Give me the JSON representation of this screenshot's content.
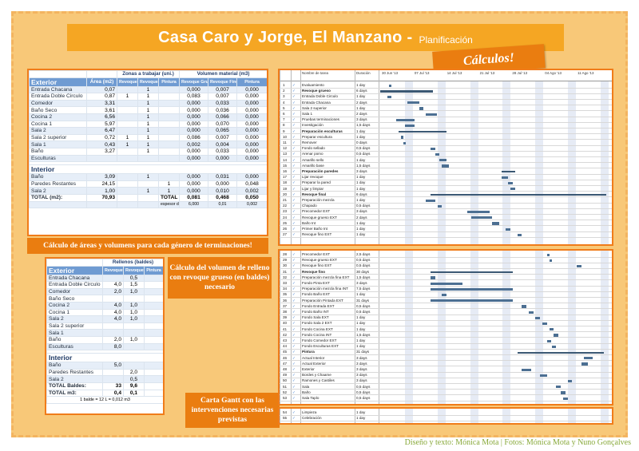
{
  "header": {
    "title": "Casa Caro y Jorge, El Manzano -",
    "subtitle": "Planificación",
    "tag": "Cálculos!"
  },
  "table1": {
    "group_headers": [
      "Zonas a trabajar (uni.)",
      "Volumen material (m3)"
    ],
    "col_headers": [
      "Área (m2)",
      "Revoque Grueso",
      "Revoque Fino",
      "Pintura",
      "Revoque Grueso",
      "Revoque Fino",
      "Pintura"
    ],
    "exterior_label": "Exterior",
    "exterior_rows": [
      [
        "Entrada Chacana",
        "0,07",
        "",
        "1",
        "",
        "0,000",
        "0,007",
        "0,000"
      ],
      [
        "Entrada Doble Circulo",
        "0,87",
        "1",
        "1",
        "",
        "0,083",
        "0,007",
        "0,000"
      ],
      [
        "Comedor",
        "3,31",
        "",
        "1",
        "",
        "0,000",
        "0,033",
        "0,000"
      ],
      [
        "Baño Seco",
        "3,61",
        "",
        "1",
        "",
        "0,000",
        "0,036",
        "0,000"
      ],
      [
        "Cocina 2",
        "6,56",
        "",
        "1",
        "",
        "0,000",
        "0,066",
        "0,000"
      ],
      [
        "Cocina 1",
        "5,97",
        "",
        "1",
        "",
        "0,000",
        "0,070",
        "0,000"
      ],
      [
        "Sala 2",
        "6,47",
        "",
        "1",
        "",
        "0,000",
        "0,065",
        "0,000"
      ],
      [
        "Sala 2 superior",
        "0,72",
        "1",
        "1",
        "",
        "0,086",
        "0,007",
        "0,000"
      ],
      [
        "Sala 1",
        "0,43",
        "1",
        "1",
        "",
        "0,002",
        "0,004",
        "0,000"
      ],
      [
        "Baño",
        "3,27",
        "",
        "1",
        "",
        "0,000",
        "0,033",
        "0,000"
      ],
      [
        "Esculturas",
        "",
        "",
        "",
        "",
        "0,000",
        "0,000",
        "0,000"
      ]
    ],
    "interior_label": "Interior",
    "interior_rows": [
      [
        "Baño",
        "3,09",
        "",
        "1",
        "",
        "0,000",
        "0,031",
        "0,000"
      ],
      [
        "Paredes Restantes",
        "24,15",
        "",
        "",
        "1",
        "0,000",
        "0,000",
        "0,048"
      ],
      [
        "Sala 2",
        "1,00",
        "",
        "1",
        "1",
        "0,000",
        "0,010",
        "0,002"
      ]
    ],
    "total_row": [
      "TOTAL (m2):",
      "70,93",
      "",
      "",
      "TOTAL (m3):",
      "0,081",
      "0,468",
      "0,050"
    ],
    "footer_row": [
      "",
      "",
      "",
      "",
      "espesor de la terminación (cm)",
      "6,000",
      "0,01",
      "0,002"
    ]
  },
  "table2": {
    "group_header": "Rellenos (baldes)",
    "col_headers": [
      "Revoque Grueso",
      "Revoque Fino",
      "Pintura"
    ],
    "exterior_label": "Exterior",
    "exterior_rows": [
      [
        "Entrada Chacana",
        "",
        "0,5",
        ""
      ],
      [
        "Entrada Doble Circulo",
        "4,0",
        "1,5",
        ""
      ],
      [
        "Comedor",
        "2,0",
        "1,0",
        ""
      ],
      [
        "Baño Seco",
        "",
        "",
        ""
      ],
      [
        "Cocina 2",
        "4,0",
        "1,0",
        ""
      ],
      [
        "Cocina 1",
        "4,0",
        "1,0",
        ""
      ],
      [
        "Sala 2",
        "4,0",
        "1,0",
        ""
      ],
      [
        "Sala 2 superior",
        "",
        "",
        ""
      ],
      [
        "Sala 1",
        "",
        "",
        ""
      ],
      [
        "Baño",
        "2,0",
        "1,0",
        ""
      ],
      [
        "Esculturas",
        "8,0",
        "",
        ""
      ]
    ],
    "interior_label": "Interior",
    "interior_rows": [
      [
        "Baño",
        "5,0",
        "",
        ""
      ],
      [
        "Paredes Restantes",
        "",
        "2,0",
        ""
      ],
      [
        "Sala 2",
        "",
        "0,5",
        ""
      ]
    ],
    "total_rows": [
      [
        "TOTAL Baldes:",
        "33",
        "9,6",
        ""
      ],
      [
        "TOTAL m3:",
        "0,4",
        "0,1",
        ""
      ]
    ],
    "note": "1 balde = 12 L = 0,012 m3"
  },
  "captions": {
    "cap1": "Cálculo de áreas y volumens para cada género de terminaciones!",
    "cap2": "Cálculo del volumen de relleno con revoque grueso (en baldes) necesario",
    "cap3": "Carta Gantt con las intervenciones necesarias previstas"
  },
  "gantt": {
    "header_task": "Nombre de tarea",
    "header_dur": "Duración",
    "dates": [
      "30 Jun '13",
      "07 Jul '13",
      "14 Jul '13",
      "21 Jul '13",
      "28 Jul '13",
      "04 Ago '13",
      "11 Ago '13"
    ],
    "top_tasks": [
      {
        "id": "1",
        "name": "Evaluamiento",
        "dur": "1 day",
        "bold": false,
        "start": 0.04,
        "len": 0.0
      },
      {
        "id": "2",
        "name": "Revoque grueso",
        "dur": "6 days",
        "bold": true,
        "start": 0.0,
        "len": 0.23
      },
      {
        "id": "3",
        "name": "Entrada Doble Circulo",
        "dur": "1 day",
        "bold": false,
        "start": 0.03,
        "len": 0.02
      },
      {
        "id": "4",
        "name": "Entrada Chacana",
        "dur": "2 days",
        "bold": false,
        "start": 0.12,
        "len": 0.05
      },
      {
        "id": "5",
        "name": "Sala 2 superior",
        "dur": "1 day",
        "bold": false,
        "start": 0.17,
        "len": 0.02
      },
      {
        "id": "6",
        "name": "Sala 1",
        "dur": "2 days",
        "bold": false,
        "start": 0.2,
        "len": 0.05
      },
      {
        "id": "7",
        "name": "Pruebas terminaciones",
        "dur": "3 days",
        "bold": false,
        "start": 0.07,
        "len": 0.08
      },
      {
        "id": "8",
        "name": "Investigación",
        "dur": "1,5 days",
        "bold": false,
        "start": 0.11,
        "len": 0.04
      },
      {
        "id": "9",
        "name": "Preparación esculturas",
        "dur": "1 day",
        "bold": true,
        "start": 0.08,
        "len": 0.21
      },
      {
        "id": "10",
        "name": "Preparar escultura",
        "dur": "1 day",
        "bold": false,
        "start": 0.09,
        "len": 0.0
      },
      {
        "id": "11",
        "name": "Remover",
        "dur": "0 days",
        "bold": false,
        "start": 0.1,
        "len": 0.0
      },
      {
        "id": "12",
        "name": "Fondo sellado",
        "dur": "0,5 days",
        "bold": false,
        "start": 0.22,
        "len": 0.02
      },
      {
        "id": "13",
        "name": "Arenar pomo",
        "dur": "0,5 days",
        "bold": false,
        "start": 0.24,
        "len": 0.02
      },
      {
        "id": "14",
        "name": "Amarillo sello",
        "dur": "1 day",
        "bold": false,
        "start": 0.26,
        "len": 0.03
      },
      {
        "id": "15",
        "name": "Amarillo base",
        "dur": "1,5 days",
        "bold": false,
        "start": 0.27,
        "len": 0.03
      },
      {
        "id": "16",
        "name": "Preparación paredes",
        "dur": "3 days",
        "bold": true,
        "start": 0.53,
        "len": 0.06
      },
      {
        "id": "17",
        "name": "Lijar revoque",
        "dur": "1 day",
        "bold": false,
        "start": 0.53,
        "len": 0.03
      },
      {
        "id": "18",
        "name": "Preparar la pared",
        "dur": "1 day",
        "bold": false,
        "start": 0.56,
        "len": 0.02
      },
      {
        "id": "19",
        "name": "Lijar y limpiar",
        "dur": "1 day",
        "bold": false,
        "start": 0.57,
        "len": 0.02
      },
      {
        "id": "20",
        "name": "Revoque final",
        "dur": "6 days",
        "bold": true,
        "start": 0.22,
        "len": 0.77
      },
      {
        "id": "21",
        "name": "Preparación mezcla",
        "dur": "1 day",
        "bold": false,
        "start": 0.2,
        "len": 0.04
      },
      {
        "id": "22",
        "name": "Chapado",
        "dur": "0,5 days",
        "bold": false,
        "start": 0.25,
        "len": 0.02
      },
      {
        "id": "23",
        "name": "Precomedor EXT",
        "dur": "3 days",
        "bold": false,
        "start": 0.38,
        "len": 0.1
      },
      {
        "id": "24",
        "name": "Revoque grueso EXT",
        "dur": "2 days",
        "bold": false,
        "start": 0.4,
        "len": 0.09
      },
      {
        "id": "25",
        "name": "Baño Int",
        "dur": "1 day",
        "bold": false,
        "start": 0.49,
        "len": 0.03
      },
      {
        "id": "26",
        "name": "Primer Baño Int",
        "dur": "1 day",
        "bold": false,
        "start": 0.55,
        "len": 0.02
      },
      {
        "id": "27",
        "name": "Revoque fino EXT",
        "dur": "1 day",
        "bold": false,
        "start": 0.6,
        "len": 0.02
      }
    ],
    "bottom_tasks": [
      {
        "id": "28",
        "name": "Precomedor EXT",
        "dur": "2,5 days",
        "bold": false,
        "start": 0.73,
        "len": 0.01
      },
      {
        "id": "29",
        "name": "Revoque grueso EXT",
        "dur": "0,5 days",
        "bold": false,
        "start": 0.74,
        "len": 0.01
      },
      {
        "id": "30",
        "name": "Revoque fino EXT",
        "dur": "0,5 days",
        "bold": false,
        "start": 0.86,
        "len": 0.02
      },
      {
        "id": "31",
        "name": "Revoque fino",
        "dur": "30 days",
        "bold": true,
        "start": 0.22,
        "len": 0.36
      },
      {
        "id": "32",
        "name": "Preparación mezcla fina EXT",
        "dur": "1,5 days",
        "bold": false,
        "start": 0.22,
        "len": 0.02
      },
      {
        "id": "33",
        "name": "Fondo Pinta EXT",
        "dur": "3 days",
        "bold": false,
        "start": 0.22,
        "len": 0.14
      },
      {
        "id": "34",
        "name": "Preparación mezcla fina INT",
        "dur": "7,5 days",
        "bold": false,
        "start": 0.22,
        "len": 0.36
      },
      {
        "id": "35",
        "name": "Fondo Baño EXT",
        "dur": "1 day",
        "bold": false,
        "start": 0.27,
        "len": 0.02
      },
      {
        "id": "36",
        "name": "Preparación Pintada EXT",
        "dur": "31 days",
        "bold": false,
        "start": 0.22,
        "len": 0.36
      },
      {
        "id": "37",
        "name": "Fondo Entrada EXT",
        "dur": "0,5 days",
        "bold": false,
        "start": 0.62,
        "len": 0.02
      },
      {
        "id": "38",
        "name": "Fondo Baño INT",
        "dur": "0,5 days",
        "bold": false,
        "start": 0.65,
        "len": 0.02
      },
      {
        "id": "39",
        "name": "Fondo Sala EXT",
        "dur": "1 day",
        "bold": false,
        "start": 0.68,
        "len": 0.02
      },
      {
        "id": "40",
        "name": "Fondo Sala 2 EXT",
        "dur": "1 day",
        "bold": false,
        "start": 0.71,
        "len": 0.02
      },
      {
        "id": "41",
        "name": "Fondo Cocina EXT",
        "dur": "1 day",
        "bold": false,
        "start": 0.74,
        "len": 0.02
      },
      {
        "id": "42",
        "name": "Fondo Cocina INT",
        "dur": "1,5 days",
        "bold": false,
        "start": 0.76,
        "len": 0.02
      },
      {
        "id": "43",
        "name": "Fondo Comedor EXT",
        "dur": "1 day",
        "bold": false,
        "start": 0.73,
        "len": 0.02
      },
      {
        "id": "44",
        "name": "Fondo Esculturas EXT",
        "dur": "1 day",
        "bold": false,
        "start": 0.75,
        "len": 0.02
      },
      {
        "id": "45",
        "name": "Pintura",
        "dur": "31 days",
        "bold": true,
        "start": 0.6,
        "len": 0.38
      },
      {
        "id": "46",
        "name": "Actual Interior",
        "dur": "3 days",
        "bold": false,
        "start": 0.89,
        "len": 0.04
      },
      {
        "id": "47",
        "name": "Actual Exterior",
        "dur": "3 days",
        "bold": false,
        "start": 0.88,
        "len": 0.03
      },
      {
        "id": "48",
        "name": "Exterior",
        "dur": "3 days",
        "bold": false,
        "start": 0.62,
        "len": 0.04
      },
      {
        "id": "49",
        "name": "Bordes y Chaame",
        "dur": "3 days",
        "bold": false,
        "start": 0.7,
        "len": 0.03
      },
      {
        "id": "50",
        "name": "Ramones y Castiles",
        "dur": "3 days",
        "bold": false,
        "start": 0.82,
        "len": 0.02
      },
      {
        "id": "51",
        "name": "Sala",
        "dur": "0,5 days",
        "bold": false,
        "start": 0.77,
        "len": 0.02
      },
      {
        "id": "52",
        "name": "Baño",
        "dur": "0,5 days",
        "bold": false,
        "start": 0.79,
        "len": 0.02
      },
      {
        "id": "53",
        "name": "Sala Taplo",
        "dur": "0,5 days",
        "bold": false,
        "start": 0.8,
        "len": 0.02
      }
    ],
    "end_tasks": [
      {
        "id": "54",
        "name": "Limpieza",
        "dur": "1 day",
        "bold": false
      },
      {
        "id": "55",
        "name": "Celebración",
        "dur": "1 day",
        "bold": false
      }
    ]
  },
  "credit": "Diseño y texto: Mónica Mota | Fotos: Mónica Mota y Nuno Gonçalves",
  "colors": {
    "orange": "#f07c1a",
    "panel_bg": "#f8c878",
    "table_header": "#6f9bd2",
    "credit": "#88a93a"
  }
}
